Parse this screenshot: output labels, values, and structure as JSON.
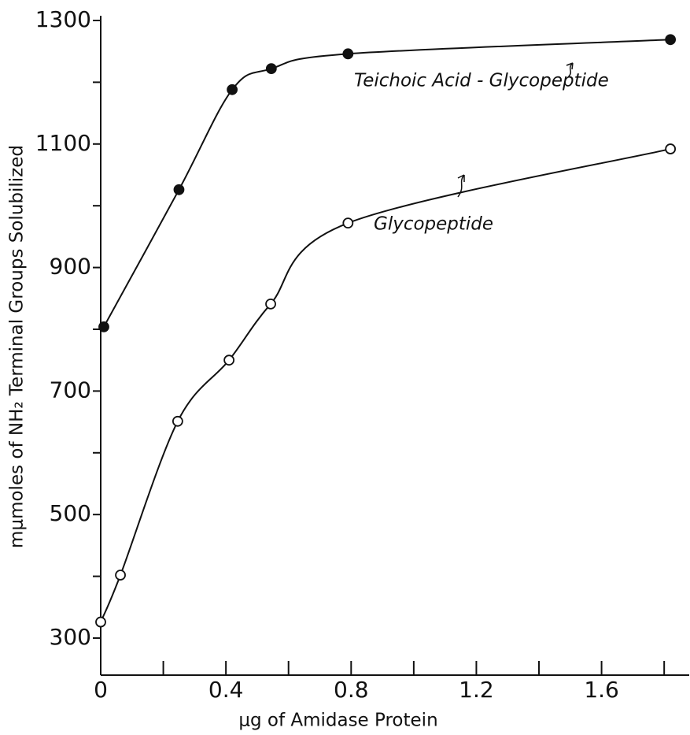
{
  "chart_data": {
    "type": "scatter",
    "xlabel": "μg of Amidase Protein",
    "ylabel": "mμmoles of NH₂ Terminal Groups Solubilized",
    "xlim": [
      0,
      1.88
    ],
    "ylim": [
      240,
      1300
    ],
    "xticks": [
      0,
      0.4,
      0.8,
      1.2,
      1.6
    ],
    "xminor_ticks": [
      0.2,
      0.6,
      1.0,
      1.4,
      1.8
    ],
    "yticks": [
      300,
      500,
      700,
      900,
      1100,
      1300
    ],
    "yminor_ticks": [
      400,
      600,
      800,
      1000,
      1200
    ],
    "series": [
      {
        "name": "Teichoic Acid - Glycopeptide",
        "color": "#111111",
        "marker": "filled",
        "x": [
          0.01,
          0.25,
          0.42,
          0.545,
          0.79,
          1.82
        ],
        "values": [
          804,
          1026,
          1188,
          1222,
          1246,
          1269
        ]
      },
      {
        "name": "Glycopeptide",
        "color": "#111111",
        "marker": "open",
        "x": [
          0.0,
          0.063,
          0.246,
          0.41,
          0.543,
          0.79,
          1.82
        ],
        "values": [
          326,
          402,
          651,
          750,
          841,
          972,
          1092
        ]
      }
    ]
  }
}
